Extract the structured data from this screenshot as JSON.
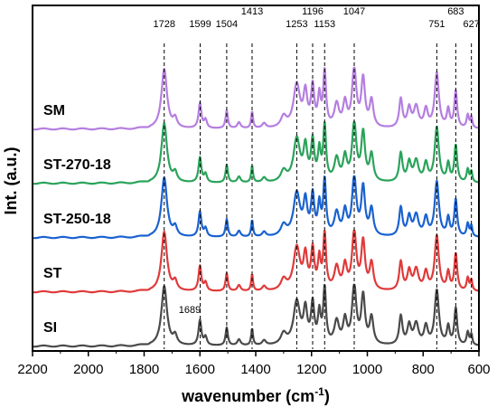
{
  "chart_data": {
    "type": "line",
    "xlabel": "wavenumber (cm-1)",
    "xlabel_main": "wavenumber (cm",
    "xlabel_sup": "-1",
    "xlabel_close": ")",
    "ylabel": "Int. (a.u.)",
    "xlim": [
      2200,
      600
    ],
    "x_reversed": true,
    "x_ticks": [
      2200,
      2000,
      1800,
      1600,
      1400,
      1200,
      1000,
      800,
      600
    ],
    "y_ticks": [],
    "grid": false,
    "legend": "inline-left",
    "reference_lines": [
      1728,
      1599,
      1504,
      1413,
      1253,
      1196,
      1153,
      1047,
      751,
      683,
      627
    ],
    "peak_labels": [
      {
        "text": "1728",
        "x": 1728,
        "row": 0
      },
      {
        "text": "1599",
        "x": 1599,
        "row": 0
      },
      {
        "text": "1504",
        "x": 1504,
        "row": 0
      },
      {
        "text": "1413",
        "x": 1413,
        "row": 1
      },
      {
        "text": "1253",
        "x": 1253,
        "row": 0
      },
      {
        "text": "1196",
        "x": 1196,
        "row": 1
      },
      {
        "text": "1153",
        "x": 1153,
        "row": 0
      },
      {
        "text": "1047",
        "x": 1047,
        "row": 1
      },
      {
        "text": "751",
        "x": 751,
        "row": 0
      },
      {
        "text": "683",
        "x": 683,
        "row": 1
      },
      {
        "text": "627",
        "x": 627,
        "row": 0
      }
    ],
    "annotation": {
      "text": "1689",
      "x": 1689
    },
    "series": [
      {
        "name": "SM",
        "color": "#b57ee0",
        "offset": 4
      },
      {
        "name": "ST-270-18",
        "color": "#2aa35a",
        "offset": 3
      },
      {
        "name": "ST-250-18",
        "color": "#1a62d0",
        "offset": 2
      },
      {
        "name": "ST",
        "color": "#e03a3a",
        "offset": 1
      },
      {
        "name": "SI",
        "color": "#4a4a4a",
        "offset": 0
      }
    ],
    "profile": {
      "baseline": 0.02,
      "peaks": [
        [
          1728,
          1.0,
          12
        ],
        [
          1689,
          0.15,
          8
        ],
        [
          1600,
          0.42,
          6
        ],
        [
          1580,
          0.14,
          6
        ],
        [
          1504,
          0.3,
          5
        ],
        [
          1460,
          0.1,
          7
        ],
        [
          1413,
          0.28,
          4
        ],
        [
          1370,
          0.08,
          8
        ],
        [
          1300,
          0.18,
          12
        ],
        [
          1253,
          0.72,
          14
        ],
        [
          1222,
          0.55,
          8
        ],
        [
          1196,
          0.66,
          7
        ],
        [
          1172,
          0.5,
          6
        ],
        [
          1153,
          0.92,
          6
        ],
        [
          1110,
          0.38,
          10
        ],
        [
          1080,
          0.4,
          8
        ],
        [
          1047,
          0.98,
          9
        ],
        [
          1015,
          0.8,
          8
        ],
        [
          985,
          0.45,
          8
        ],
        [
          880,
          0.48,
          7
        ],
        [
          850,
          0.32,
          8
        ],
        [
          825,
          0.35,
          10
        ],
        [
          790,
          0.3,
          8
        ],
        [
          751,
          0.92,
          9
        ],
        [
          710,
          0.3,
          6
        ],
        [
          683,
          0.62,
          6
        ],
        [
          640,
          0.22,
          5
        ],
        [
          627,
          0.18,
          4
        ]
      ]
    }
  }
}
